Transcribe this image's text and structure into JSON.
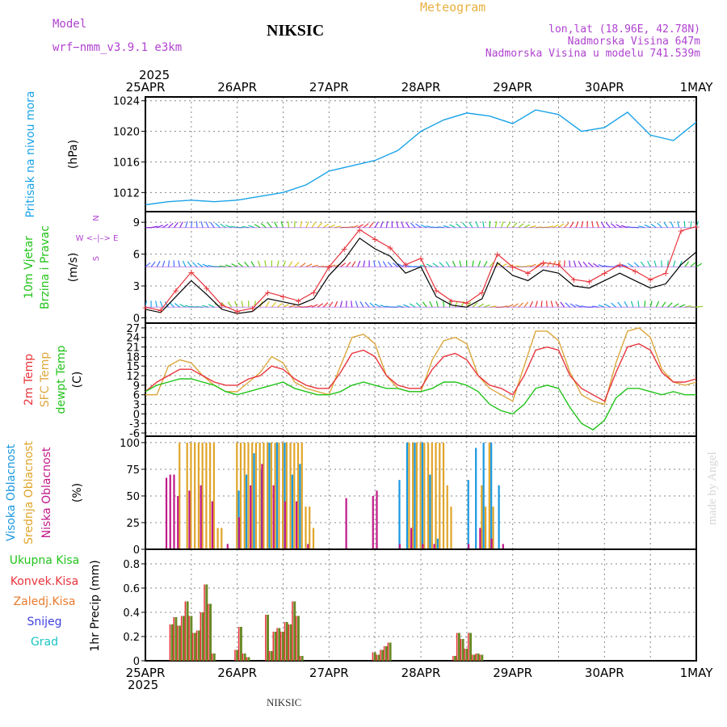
{
  "header": {
    "model_label": "Model",
    "model_name": "wrf−nmm_v3.9.1  e3km",
    "station_title": "NIKSIC",
    "meteogram_label": "Meteogram",
    "lonlat": "lon,lat (18.96E, 42.78N)",
    "elevation": "Nadmorska Visina 647m",
    "model_elevation": "Nadmorska Visina u modelu 741.539m",
    "footer_station": "NIKSIC",
    "watermark": "made by Angel"
  },
  "colors": {
    "pressure": "#1aa3e8",
    "t2m": "#e8343c",
    "sfc": "#dca73c",
    "dewpt": "#22c41a",
    "high_cloud": "#1a98e0",
    "mid_cloud": "#e0a52a",
    "low_cloud": "#c0198a",
    "precip_total": "#6a8a26",
    "precip_conv": "#e8343c",
    "gust": "#e8343c",
    "wind_speed": "#000000",
    "header_purple": "#b042d0",
    "header_orange": "#e8b040"
  },
  "chart_data": [
    {
      "id": "pressure",
      "type": "line",
      "ylabel": "Pritisak na nivou mora",
      "unit": "(hPa)",
      "ylim": [
        1009.5,
        1024.5
      ],
      "yticks": [
        1012,
        1016,
        1020,
        1024
      ],
      "x_hours": [
        0,
        6,
        12,
        18,
        24,
        30,
        36,
        42,
        48,
        54,
        60,
        66,
        72,
        78,
        84,
        90,
        96,
        102,
        108,
        114,
        120,
        126,
        132,
        138,
        144
      ],
      "values": [
        1010.4,
        1010.8,
        1011.0,
        1010.8,
        1011.0,
        1011.5,
        1012.0,
        1013.0,
        1014.8,
        1015.5,
        1016.2,
        1017.5,
        1020.0,
        1021.5,
        1022.4,
        1022.0,
        1021.0,
        1022.8,
        1022.2,
        1020.0,
        1020.5,
        1022.5,
        1019.5,
        1018.8,
        1021.2
      ]
    },
    {
      "id": "wind",
      "type": "line",
      "ylabel": [
        "10m Vjetar",
        "Brzina i Pravac"
      ],
      "unit": "(m/s)",
      "ylim": [
        -0.5,
        10
      ],
      "yticks": [
        0,
        3,
        6,
        9
      ],
      "compass": "W <–|–> E",
      "compass_n": "N",
      "compass_s": "S",
      "x_hours": [
        0,
        4,
        8,
        12,
        16,
        20,
        24,
        28,
        32,
        36,
        40,
        44,
        48,
        52,
        56,
        60,
        64,
        68,
        72,
        76,
        80,
        84,
        88,
        92,
        96,
        100,
        104,
        108,
        112,
        116,
        120,
        124,
        128,
        132,
        136,
        140,
        144
      ],
      "speed": [
        0.8,
        0.5,
        2.0,
        3.5,
        2.2,
        0.8,
        0.4,
        0.6,
        1.8,
        1.5,
        1.2,
        1.8,
        4.0,
        5.5,
        7.5,
        6.5,
        5.8,
        4.2,
        4.8,
        2.0,
        1.2,
        1.0,
        1.8,
        5.2,
        4.0,
        3.5,
        4.5,
        4.2,
        3.0,
        2.8,
        3.5,
        4.2,
        3.5,
        2.8,
        3.2,
        5.0,
        6.2
      ],
      "gust": [
        1.0,
        0.7,
        2.6,
        4.3,
        2.8,
        1.2,
        0.6,
        0.9,
        2.4,
        2.0,
        1.6,
        2.4,
        4.8,
        6.5,
        8.3,
        7.4,
        6.6,
        5.0,
        5.6,
        2.6,
        1.6,
        1.4,
        2.4,
        6.0,
        4.8,
        4.2,
        5.2,
        5.0,
        3.6,
        3.4,
        4.2,
        5.0,
        4.4,
        3.6,
        4.2,
        8.2,
        8.6
      ],
      "barb_rows": [
        8.5,
        4.8,
        1.0
      ],
      "barb_row_top_hours": [
        0,
        78,
        144
      ],
      "barb_row_mid_hours": [
        0,
        50,
        144
      ],
      "barb_row_low_hours": [
        0,
        50,
        144
      ]
    },
    {
      "id": "temperature",
      "type": "line",
      "ylabel": [
        "2m Temp",
        "SFC Temp",
        "dewpt Temp"
      ],
      "unit": "(C)",
      "ylim": [
        -7,
        28.5
      ],
      "yticks": [
        -6,
        -3,
        0,
        3,
        6,
        9,
        12,
        15,
        18,
        21,
        24,
        27
      ],
      "x_hours": [
        0,
        3,
        6,
        9,
        12,
        15,
        18,
        21,
        24,
        27,
        30,
        33,
        36,
        39,
        42,
        45,
        48,
        51,
        54,
        57,
        60,
        63,
        66,
        69,
        72,
        75,
        78,
        81,
        84,
        87,
        90,
        93,
        96,
        99,
        102,
        105,
        108,
        111,
        114,
        117,
        120,
        123,
        126,
        129,
        132,
        135,
        138,
        141,
        144
      ],
      "t2m": [
        7,
        10,
        12,
        14,
        14,
        12,
        10,
        9,
        9,
        11,
        12,
        15,
        14,
        11,
        9,
        8,
        8,
        13,
        19,
        20,
        18,
        12,
        9,
        8,
        8,
        14,
        18,
        19,
        17,
        12,
        9,
        8,
        6,
        12,
        20,
        21,
        20,
        12,
        8,
        6,
        4,
        13,
        21,
        22,
        20,
        13,
        10,
        10,
        11
      ],
      "sfc": [
        6,
        6,
        15,
        17,
        16,
        12,
        9,
        7,
        7,
        10,
        13,
        18,
        16,
        10,
        8,
        7,
        6,
        15,
        24,
        25,
        22,
        12,
        8,
        7,
        7,
        17,
        23,
        24,
        22,
        12,
        8,
        6,
        4,
        15,
        26,
        26,
        23,
        13,
        6,
        4,
        3,
        16,
        26,
        27,
        24,
        14,
        10,
        9,
        10
      ],
      "dewpt": [
        7,
        9,
        10,
        11,
        11,
        10,
        9,
        7,
        6,
        7,
        8,
        9,
        10,
        8,
        7,
        6,
        6,
        7,
        9,
        10,
        9,
        8,
        8,
        7,
        7,
        8,
        10,
        10,
        9,
        7,
        3,
        1,
        0,
        3,
        8,
        9,
        8,
        2,
        -3,
        -5,
        -2,
        5,
        8,
        8,
        7,
        6,
        7,
        6,
        6
      ]
    },
    {
      "id": "clouds",
      "type": "bar",
      "ylabel": [
        "Visoka Oblacnost",
        "Srednja Oblacnost",
        "Niska Oblacnost"
      ],
      "unit": "(%)",
      "ylim": [
        0,
        106
      ],
      "yticks": [
        0,
        25,
        50,
        75,
        100
      ],
      "high_hours": [
        24,
        26,
        28,
        30,
        32,
        34,
        36,
        38,
        40,
        66,
        68,
        70,
        72,
        74,
        76,
        84,
        86,
        88,
        90,
        92
      ],
      "high_values": [
        55,
        70,
        90,
        75,
        100,
        100,
        100,
        70,
        80,
        65,
        100,
        100,
        100,
        70,
        10,
        65,
        95,
        100,
        100,
        60
      ],
      "mid_hours": [
        9,
        11,
        12,
        13,
        14,
        15,
        16,
        17,
        18,
        19,
        20,
        24,
        25,
        26,
        27,
        28,
        29,
        30,
        31,
        32,
        33,
        34,
        35,
        36,
        37,
        38,
        39,
        40,
        41,
        42,
        43,
        44,
        69,
        70,
        71,
        72,
        73,
        74,
        75,
        76,
        77,
        78,
        79,
        80,
        88,
        89,
        90,
        91
      ],
      "mid_values": [
        100,
        100,
        100,
        100,
        100,
        100,
        100,
        100,
        100,
        20,
        20,
        100,
        100,
        100,
        100,
        100,
        100,
        100,
        100,
        100,
        100,
        100,
        100,
        100,
        100,
        100,
        100,
        100,
        100,
        40,
        40,
        20,
        100,
        100,
        100,
        100,
        100,
        100,
        100,
        100,
        100,
        100,
        60,
        40,
        60,
        40,
        100,
        40
      ],
      "low_hours": [
        6,
        7,
        8,
        9,
        12,
        15,
        18,
        22,
        25,
        28,
        31,
        34,
        37,
        40,
        43,
        53,
        60,
        61,
        67,
        70,
        73,
        76,
        85,
        88,
        91,
        94
      ],
      "low_values": [
        67,
        70,
        70,
        50,
        55,
        60,
        45,
        5,
        30,
        60,
        80,
        60,
        45,
        45,
        5,
        48,
        50,
        55,
        5,
        20,
        5,
        5,
        5,
        20,
        10,
        5
      ],
      "values_note": "x in hours from 25APR 00"
    },
    {
      "id": "precip",
      "type": "bar",
      "ylabel": "1hr Precip",
      "unit": "(mm)",
      "ylim": [
        0,
        0.92
      ],
      "yticks": [
        0,
        0.2,
        0.4,
        0.6,
        0.8
      ],
      "hours": [
        7,
        8,
        9,
        10,
        11,
        12,
        13,
        14,
        15,
        16,
        17,
        18,
        24,
        25,
        26,
        27,
        32,
        33,
        34,
        35,
        36,
        37,
        38,
        39,
        40,
        41,
        60,
        61,
        62,
        63,
        64,
        81,
        82,
        83,
        84,
        85,
        86,
        87,
        88
      ],
      "total": [
        0.3,
        0.36,
        0.29,
        0.37,
        0.49,
        0.37,
        0.23,
        0.25,
        0.4,
        0.63,
        0.47,
        0.06,
        0.09,
        0.28,
        0.06,
        0.03,
        0.38,
        0.08,
        0.24,
        0.27,
        0.24,
        0.32,
        0.3,
        0.49,
        0.37,
        0.04,
        0.07,
        0.05,
        0.09,
        0.12,
        0.15,
        0.04,
        0.23,
        0.18,
        0.1,
        0.23,
        0.05,
        0.06,
        0.05
      ],
      "legend": [
        "Ukupna Kisa",
        "Konvek.Kisa",
        "Zaledj.Kisa",
        "Snijeg",
        "Grad"
      ],
      "legend_colors": [
        "#22c41a",
        "#e8343c",
        "#e87a2c",
        "#4040e0",
        "#1ac4c4"
      ]
    }
  ],
  "x_axis": {
    "year": "2025",
    "labels": [
      "25APR",
      "26APR",
      "27APR",
      "28APR",
      "29APR",
      "30APR",
      "1MAY"
    ],
    "label_hours": [
      0,
      24,
      48,
      72,
      96,
      120,
      144
    ]
  }
}
